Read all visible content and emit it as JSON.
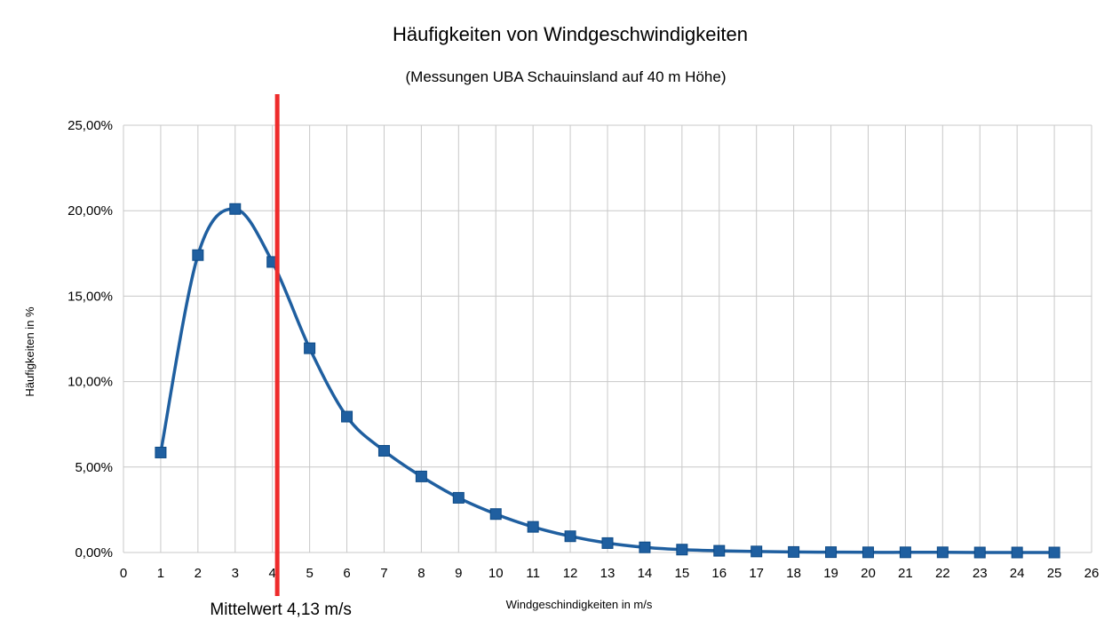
{
  "chart_data": {
    "type": "line",
    "title": "Häufigkeiten von Windgeschwindigkeiten",
    "subtitle": "(Messungen UBA Schauinsland auf 40 m Höhe)",
    "xlabel": "Windgeschindigkeiten  in  m/s",
    "ylabel": "Häufigkeiten  in %",
    "xlim": [
      0,
      26
    ],
    "ylim": [
      0,
      25
    ],
    "x_ticks": [
      "0",
      "1",
      "2",
      "3",
      "4",
      "5",
      "6",
      "7",
      "8",
      "9",
      "10",
      "11",
      "12",
      "13",
      "14",
      "15",
      "16",
      "17",
      "18",
      "19",
      "20",
      "21",
      "22",
      "23",
      "24",
      "25",
      "26"
    ],
    "y_ticks": [
      "0,00%",
      "5,00%",
      "10,00%",
      "15,00%",
      "20,00%",
      "25,00%"
    ],
    "y_tick_values": [
      0,
      5,
      10,
      15,
      20,
      25
    ],
    "grid": true,
    "series": [
      {
        "color": "#1f5fa0",
        "x": [
          1,
          2,
          3,
          4,
          5,
          6,
          7,
          8,
          9,
          10,
          11,
          12,
          13,
          14,
          15,
          16,
          17,
          18,
          19,
          20,
          21,
          22,
          23,
          24,
          25
        ],
        "y": [
          5.85,
          17.4,
          20.1,
          17.0,
          11.95,
          7.95,
          5.95,
          4.45,
          3.2,
          2.25,
          1.5,
          0.95,
          0.55,
          0.3,
          0.17,
          0.1,
          0.06,
          0.03,
          0.02,
          0.01,
          0.01,
          0.01,
          0.0,
          0.0,
          0.0
        ]
      }
    ],
    "annotation": {
      "label": "Mittelwert 4,13 m/s",
      "x": 4.13,
      "color": "#ee2b2b"
    }
  }
}
